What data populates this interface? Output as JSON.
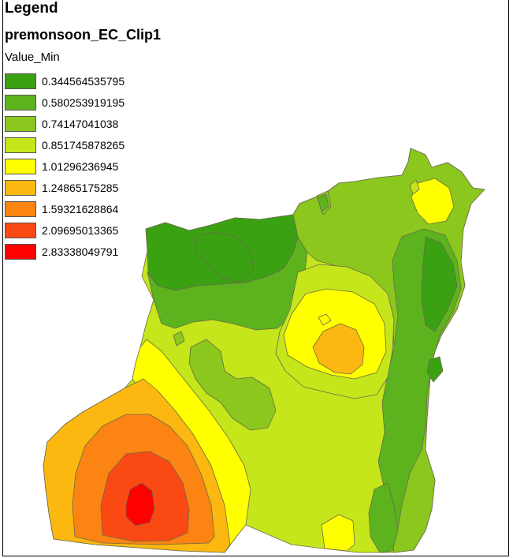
{
  "legend": {
    "title": "Legend",
    "layer_name": "premonsoon_EC_Clip1",
    "field_name": "Value_Min",
    "classes": [
      {
        "label": "0.344564535795",
        "color": "#3aa112"
      },
      {
        "label": "0.580253919195",
        "color": "#5cb31e"
      },
      {
        "label": "0.74147041038",
        "color": "#8cc71e"
      },
      {
        "label": "0.851745878265",
        "color": "#c5e61a"
      },
      {
        "label": "1.01296236945",
        "color": "#ffff00"
      },
      {
        "label": "1.24865175285",
        "color": "#fcb810"
      },
      {
        "label": "1.59321628864",
        "color": "#fb8412"
      },
      {
        "label": "2.09695013365",
        "color": "#fb4914"
      },
      {
        "label": "2.83338049791",
        "color": "#fe0000"
      }
    ]
  }
}
